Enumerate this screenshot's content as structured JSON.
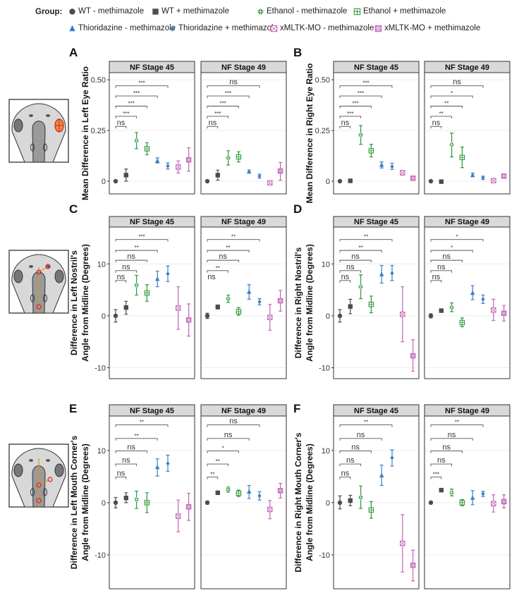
{
  "legend": {
    "title": "Group:",
    "items": [
      {
        "label": "WT - methimazole",
        "color": "#4d4d4d",
        "marker": "circle"
      },
      {
        "label": "WT + methimazole",
        "color": "#4d4d4d",
        "marker": "square"
      },
      {
        "label": "Ethanol - methimazole",
        "color": "#2e9a3a",
        "marker": "diamond-plus"
      },
      {
        "label": "Ethanol + methimazole",
        "color": "#2e9a3a",
        "marker": "square-plus"
      },
      {
        "label": "Thioridazine - methimazole",
        "color": "#3b7fc4",
        "marker": "triangle"
      },
      {
        "label": "Thioridazine + methimazole",
        "color": "#3b7fc4",
        "marker": "diamond"
      },
      {
        "label": "xMLTK-MO - methimazole",
        "color": "#c266b8",
        "marker": "square-x"
      },
      {
        "label": "xMLTK-MO + methimazole",
        "color": "#c266b8",
        "marker": "square-x-circle"
      }
    ]
  },
  "chart_data": [
    {
      "panel": "A",
      "type": "scatter",
      "ylabel": [
        "Mean Difference in Left Eye Ratio"
      ],
      "yticks": [
        0,
        0.25,
        0.5
      ],
      "ytick_labels": [
        "0",
        "0.25",
        "0.50"
      ],
      "ylim": [
        -0.0625,
        0.535
      ],
      "grid": true,
      "facets": [
        {
          "title": "NF Stage 45",
          "mean": [
            0,
            0.03,
            0.2,
            0.16,
            0.1,
            0.075,
            0.07,
            0.105
          ],
          "lower": [
            -0.004,
            0,
            0.16,
            0.13,
            0.09,
            0.06,
            0.04,
            0.05
          ],
          "upper": [
            0.004,
            0.06,
            0.24,
            0.19,
            0.115,
            0.09,
            0.1,
            0.165
          ],
          "comparisons": [
            {
              "label": "ns",
              "to_group": 2,
              "y": 0.27
            },
            {
              "label": "***",
              "to_group": 3,
              "y": 0.32
            },
            {
              "label": "***",
              "to_group": 4,
              "y": 0.37
            },
            {
              "label": "***",
              "to_group": 5,
              "y": 0.42
            },
            {
              "label": "***",
              "to_group": 6,
              "y": 0.47
            }
          ]
        },
        {
          "title": "NF Stage 49",
          "mean": [
            0,
            0.03,
            0.115,
            0.12,
            0.047,
            0.025,
            -0.008,
            0.05
          ],
          "lower": [
            -0.004,
            0.005,
            0.08,
            0.095,
            0.04,
            0.015,
            -0.018,
            0.005
          ],
          "upper": [
            0.004,
            0.055,
            0.15,
            0.145,
            0.055,
            0.035,
            0.002,
            0.092
          ],
          "comparisons": [
            {
              "label": "ns",
              "to_group": 2,
              "y": 0.27
            },
            {
              "label": "***",
              "to_group": 3,
              "y": 0.32
            },
            {
              "label": "***",
              "to_group": 4,
              "y": 0.37
            },
            {
              "label": "***",
              "to_group": 5,
              "y": 0.42
            },
            {
              "label": "ns",
              "to_group": 6,
              "y": 0.47
            }
          ]
        }
      ]
    },
    {
      "panel": "B",
      "type": "scatter",
      "ylabel": [
        "Mean Difference in Right Eye Ratio"
      ],
      "yticks": [
        0,
        0.25,
        0.5
      ],
      "ytick_labels": [
        "0",
        "0.25",
        "0.50"
      ],
      "ylim": [
        -0.0625,
        0.535
      ],
      "grid": true,
      "facets": [
        {
          "title": "NF Stage 45",
          "mean": [
            0,
            0.002,
            0.228,
            0.15,
            0.08,
            0.072,
            0.042,
            0.015
          ],
          "lower": [
            -0.003,
            -0.003,
            0.182,
            0.12,
            0.065,
            0.058,
            0.03,
            0.005
          ],
          "upper": [
            0.003,
            0.007,
            0.274,
            0.182,
            0.095,
            0.088,
            0.052,
            0.025
          ],
          "comparisons": [
            {
              "label": "ns",
              "to_group": 2,
              "y": 0.27
            },
            {
              "label": "***",
              "to_group": 3,
              "y": 0.32
            },
            {
              "label": "***",
              "to_group": 4,
              "y": 0.37
            },
            {
              "label": "***",
              "to_group": 5,
              "y": 0.42
            },
            {
              "label": "***",
              "to_group": 6,
              "y": 0.47
            }
          ]
        },
        {
          "title": "NF Stage 49",
          "mean": [
            0,
            -0.002,
            0.18,
            0.117,
            0.03,
            0.017,
            0.003,
            0.025
          ],
          "lower": [
            -0.003,
            -0.006,
            0.12,
            0.067,
            0.022,
            0.008,
            -0.003,
            0.018
          ],
          "upper": [
            0.003,
            0.002,
            0.237,
            0.168,
            0.04,
            0.025,
            0.008,
            0.032
          ],
          "comparisons": [
            {
              "label": "ns",
              "to_group": 2,
              "y": 0.27
            },
            {
              "label": "**",
              "to_group": 3,
              "y": 0.32
            },
            {
              "label": "**",
              "to_group": 4,
              "y": 0.37
            },
            {
              "label": "*",
              "to_group": 5,
              "y": 0.42
            },
            {
              "label": "ns",
              "to_group": 6,
              "y": 0.47
            }
          ]
        }
      ]
    },
    {
      "panel": "C",
      "type": "scatter",
      "ylabel": [
        "Difference in Left Nostril's",
        "Angle from Midline (Degrees)"
      ],
      "yticks": [
        -10,
        0,
        10
      ],
      "ytick_labels": [
        "-10",
        "0",
        "10"
      ],
      "ylim": [
        -12.1,
        17.1
      ],
      "grid": true,
      "facets": [
        {
          "title": "NF Stage 45",
          "mean": [
            0,
            1.6,
            5.9,
            4.4,
            7.1,
            8.1,
            1.5,
            -0.8
          ],
          "lower": [
            -1.2,
            0.3,
            4,
            2.8,
            5.6,
            6.6,
            -2.6,
            -3.9
          ],
          "upper": [
            1.2,
            2.8,
            7.8,
            6,
            8.6,
            9.6,
            5.6,
            2.3
          ],
          "comparisons": [
            {
              "label": "ns",
              "to_group": 2,
              "y": 6.8
            },
            {
              "label": "ns",
              "to_group": 3,
              "y": 8.7
            },
            {
              "label": "ns",
              "to_group": 4,
              "y": 10.7
            },
            {
              "label": "**",
              "to_group": 5,
              "y": 12.6
            },
            {
              "label": "***",
              "to_group": 6,
              "y": 14.7
            }
          ]
        },
        {
          "title": "NF Stage 49",
          "mean": [
            0,
            1.7,
            3.3,
            0.8,
            4.6,
            2.7,
            -0.3,
            2.9
          ],
          "lower": [
            -0.5,
            1.3,
            2.6,
            0.1,
            3.2,
            2.1,
            -2.8,
            0.9
          ],
          "upper": [
            0.5,
            2.1,
            4,
            1.6,
            6,
            3.3,
            2.2,
            4.9
          ],
          "comparisons": [
            {
              "label": "ns",
              "to_group": 2,
              "y": 6.8,
              "no_line": true
            },
            {
              "label": "**",
              "to_group": 3,
              "y": 8.7
            },
            {
              "label": "ns",
              "to_group": 4,
              "y": 10.7
            },
            {
              "label": "**",
              "to_group": 5,
              "y": 12.6
            },
            {
              "label": "**",
              "to_group": 6,
              "y": 14.7
            }
          ]
        }
      ]
    },
    {
      "panel": "D",
      "type": "scatter",
      "ylabel": [
        "Difference in Right Nostril's",
        "Angle from Midline (Degrees)"
      ],
      "yticks": [
        -10,
        0,
        10
      ],
      "ytick_labels": [
        "-10",
        "0",
        "10"
      ],
      "ylim": [
        -12.1,
        17.1
      ],
      "grid": true,
      "facets": [
        {
          "title": "NF Stage 45",
          "mean": [
            0,
            1.8,
            5.6,
            2.2,
            8,
            8.2,
            0.3,
            -7.7
          ],
          "lower": [
            -1.2,
            0.4,
            3.3,
            0.6,
            6.3,
            6.8,
            -5,
            -10.7
          ],
          "upper": [
            1.2,
            3.2,
            7.9,
            3.8,
            9.7,
            9.7,
            5.6,
            -4.6
          ],
          "comparisons": [
            {
              "label": "ns",
              "to_group": 2,
              "y": 6.8
            },
            {
              "label": "ns",
              "to_group": 3,
              "y": 8.7
            },
            {
              "label": "ns",
              "to_group": 4,
              "y": 10.7
            },
            {
              "label": "**",
              "to_group": 5,
              "y": 12.6
            },
            {
              "label": "**",
              "to_group": 6,
              "y": 14.7
            }
          ]
        },
        {
          "title": "NF Stage 49",
          "mean": [
            0,
            1,
            1.6,
            -1.3,
            4.4,
            3.2,
            1.1,
            0.5
          ],
          "lower": [
            -0.4,
            0.7,
            0.8,
            -2.1,
            3.1,
            2.4,
            -0.9,
            -1
          ],
          "upper": [
            0.4,
            1.3,
            2.5,
            -0.4,
            5.8,
            4,
            3.2,
            2
          ],
          "comparisons": [
            {
              "label": "ns",
              "to_group": 2,
              "y": 6.8
            },
            {
              "label": "ns",
              "to_group": 3,
              "y": 8.7
            },
            {
              "label": "ns",
              "to_group": 4,
              "y": 10.7
            },
            {
              "label": "*",
              "to_group": 5,
              "y": 12.6
            },
            {
              "label": "*",
              "to_group": 6,
              "y": 14.7
            }
          ]
        }
      ]
    },
    {
      "panel": "E",
      "type": "scatter",
      "ylabel": [
        "Difference in Left Mouth Corner's",
        "Angle from Midline (Degrees)"
      ],
      "yticks": [
        -10,
        0,
        10
      ],
      "ytick_labels": [
        "-10",
        "0",
        "10"
      ],
      "ylim": [
        -16.5,
        16.6
      ],
      "grid": true,
      "facets": [
        {
          "title": "NF Stage 45",
          "mean": [
            0,
            0.9,
            0.6,
            0,
            6.8,
            7.5,
            -2.6,
            -0.8
          ],
          "lower": [
            -1,
            0,
            -1.1,
            -1.9,
            5.1,
            6,
            -5.6,
            -3.4
          ],
          "upper": [
            1,
            1.9,
            2.2,
            1.9,
            8.4,
            9.1,
            0.5,
            1.8
          ],
          "comparisons": [
            {
              "label": "ns",
              "to_group": 2,
              "y": 4.9
            },
            {
              "label": "ns",
              "to_group": 3,
              "y": 7.4
            },
            {
              "label": "ns",
              "to_group": 4,
              "y": 9.9
            },
            {
              "label": "**",
              "to_group": 5,
              "y": 12.3
            },
            {
              "label": "**",
              "to_group": 6,
              "y": 14.9
            }
          ]
        },
        {
          "title": "NF Stage 49",
          "mean": [
            0,
            1.9,
            2.5,
            1.8,
            2.1,
            1.3,
            -1.3,
            2.3
          ],
          "lower": [
            -0.3,
            1.6,
            2,
            1.2,
            0.8,
            0.5,
            -3.1,
            0.9
          ],
          "upper": [
            0.3,
            2.2,
            3,
            2.4,
            3.3,
            2.1,
            0.4,
            3.7
          ],
          "comparisons": [
            {
              "label": "**",
              "to_group": 2,
              "y": 4.9
            },
            {
              "label": "**",
              "to_group": 3,
              "y": 7.4
            },
            {
              "label": "*",
              "to_group": 4,
              "y": 9.9
            },
            {
              "label": "ns",
              "to_group": 5,
              "y": 12.3
            },
            {
              "label": "ns",
              "to_group": 6,
              "y": 14.9
            }
          ]
        }
      ]
    },
    {
      "panel": "F",
      "type": "scatter",
      "ylabel": [
        "Difference in Right Mouth Corner's",
        "Angle from Midline (Degrees)"
      ],
      "yticks": [
        -10,
        0,
        10
      ],
      "ytick_labels": [
        "-10",
        "0",
        "10"
      ],
      "ylim": [
        -16.5,
        16.6
      ],
      "grid": true,
      "facets": [
        {
          "title": "NF Stage 45",
          "mean": [
            0,
            0.4,
            1,
            -1.4,
            5.2,
            8.6,
            -7.8,
            -12
          ],
          "lower": [
            -1.2,
            -0.6,
            -1.1,
            -3,
            3.3,
            7,
            -13.3,
            -15
          ],
          "upper": [
            1.3,
            1.4,
            3.2,
            0.2,
            7.2,
            10.1,
            -2.3,
            -9.1
          ],
          "comparisons": [
            {
              "label": "ns",
              "to_group": 2,
              "y": 4.9
            },
            {
              "label": "ns",
              "to_group": 3,
              "y": 7.4
            },
            {
              "label": "ns",
              "to_group": 4,
              "y": 9.9
            },
            {
              "label": "ns",
              "to_group": 5,
              "y": 12.3
            },
            {
              "label": "**",
              "to_group": 6,
              "y": 14.9
            }
          ]
        },
        {
          "title": "NF Stage 49",
          "mean": [
            0,
            2.4,
            1.9,
            0,
            0.9,
            1.7,
            -0.2,
            0.2
          ],
          "lower": [
            -0.2,
            2.1,
            1.3,
            -0.6,
            -0.4,
            1.2,
            -1.8,
            -1
          ],
          "upper": [
            0.2,
            2.7,
            2.6,
            0.6,
            2.3,
            2.2,
            1.5,
            1.5
          ],
          "comparisons": [
            {
              "label": "***",
              "to_group": 2,
              "y": 4.9
            },
            {
              "label": "ns",
              "to_group": 3,
              "y": 7.4
            },
            {
              "label": "ns",
              "to_group": 4,
              "y": 9.9
            },
            {
              "label": "ns",
              "to_group": 5,
              "y": 12.3
            },
            {
              "label": "**",
              "to_group": 6,
              "y": 14.9
            }
          ]
        }
      ]
    }
  ]
}
